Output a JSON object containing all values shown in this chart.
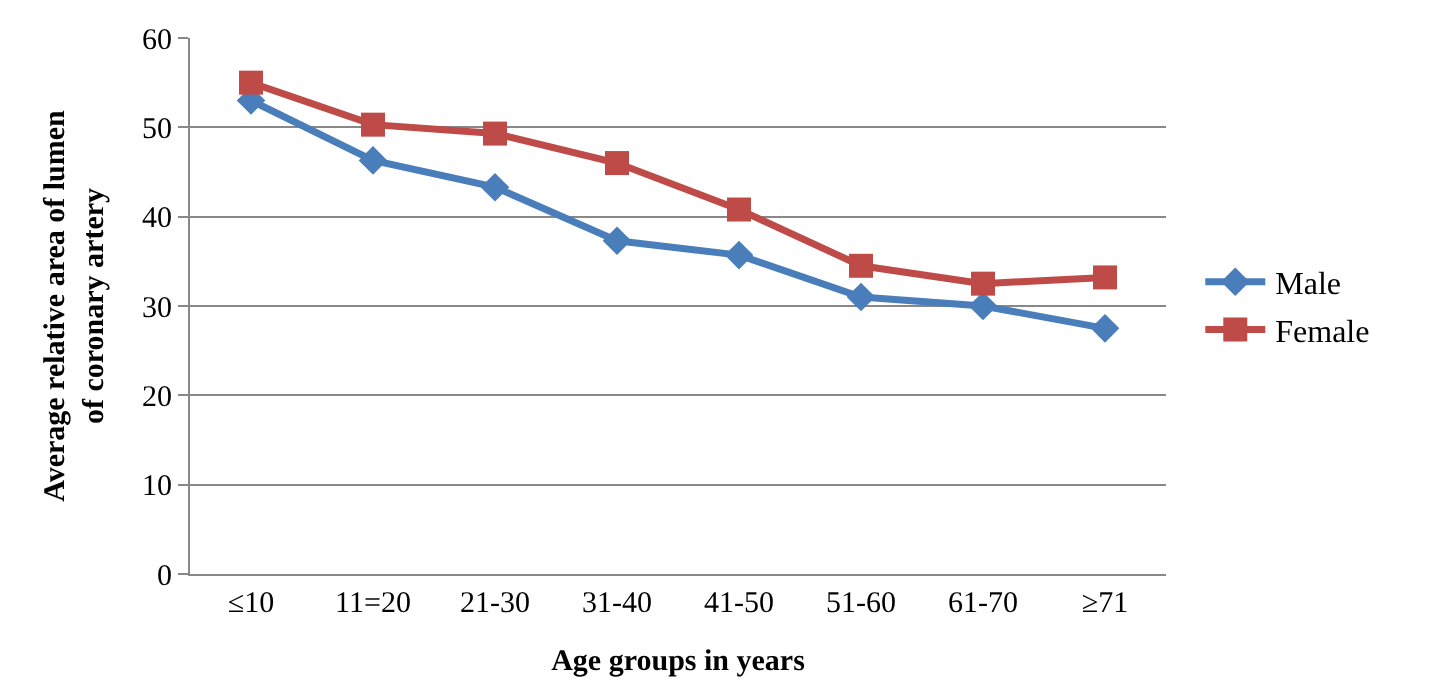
{
  "chart_data": {
    "type": "line",
    "xlabel": "Age groups in years",
    "ylabel": "Average relative area of lumen of coronary artery",
    "categories": [
      "≤10",
      "11=20",
      "21-30",
      "31-40",
      "41-50",
      "51-60",
      "61-70",
      "≥71"
    ],
    "series": [
      {
        "name": "Male",
        "color": "#4a7ebb",
        "marker": "diamond",
        "values": [
          53,
          46.3,
          43.3,
          37.3,
          35.7,
          31,
          30,
          27.5
        ]
      },
      {
        "name": "Female",
        "color": "#be4b48",
        "marker": "square",
        "values": [
          55,
          50.3,
          49.3,
          46,
          40.8,
          34.5,
          32.5,
          33.2
        ]
      }
    ],
    "ylim": [
      0,
      60
    ],
    "yticks": [
      0,
      10,
      20,
      30,
      40,
      50,
      60
    ],
    "grid": "y",
    "legend": "right",
    "line_style": "solid"
  }
}
